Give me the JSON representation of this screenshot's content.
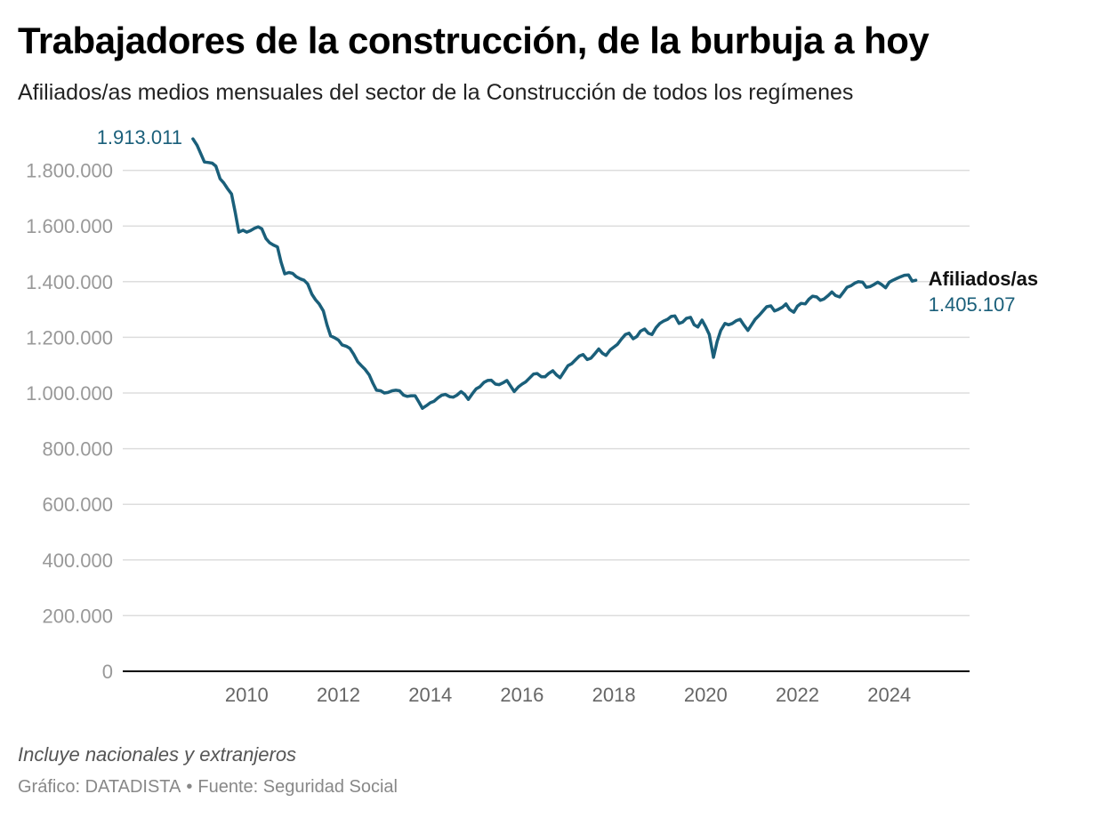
{
  "header": {
    "title": "Trabajadores de la construcción, de la burbuja a hoy",
    "subtitle": "Afiliados/as medios mensuales del sector de la Construcción de todos los regímenes"
  },
  "footer": {
    "note": "Incluye nacionales y extranjeros",
    "credit": "Gráfico: DATADISTA",
    "source": "Fuente: Seguridad Social",
    "separator": "•"
  },
  "colors": {
    "line": "#1a5f7a",
    "grid": "#dddddd",
    "axis": "#000000",
    "tick_label": "#999999"
  },
  "chart_data": {
    "type": "line",
    "title": "Trabajadores de la construcción, de la burbuja a hoy",
    "subtitle": "Afiliados/as medios mensuales del sector de la Construcción de todos los regímenes",
    "xlabel": "",
    "ylabel": "",
    "x_ticks": [
      2010,
      2012,
      2014,
      2016,
      2018,
      2020,
      2022,
      2024
    ],
    "x_tick_labels": [
      "2010",
      "2012",
      "2014",
      "2016",
      "2018",
      "2020",
      "2022",
      "2024"
    ],
    "xlim": [
      2007.3,
      2025.75
    ],
    "ylim": [
      0,
      2000000
    ],
    "y_ticks": [
      0,
      200000,
      400000,
      600000,
      800000,
      1000000,
      1200000,
      1400000,
      1600000,
      1800000
    ],
    "y_tick_labels": [
      "0",
      "200.000",
      "400.000",
      "600.000",
      "800.000",
      "1.000.000",
      "1.200.000",
      "1.400.000",
      "1.600.000",
      "1.800.000"
    ],
    "grid": true,
    "series": [
      {
        "name": "Afiliados/as",
        "end_value_label": "1.405.107",
        "start_value_label": "1.913.011",
        "points": [
          [
            2008.83,
            1913011
          ],
          [
            2008.92,
            1890000
          ],
          [
            2009.0,
            1860000
          ],
          [
            2009.08,
            1830000
          ],
          [
            2009.17,
            1828000
          ],
          [
            2009.25,
            1826000
          ],
          [
            2009.33,
            1815000
          ],
          [
            2009.42,
            1770000
          ],
          [
            2009.5,
            1755000
          ],
          [
            2009.58,
            1735000
          ],
          [
            2009.67,
            1715000
          ],
          [
            2009.75,
            1650000
          ],
          [
            2009.83,
            1578000
          ],
          [
            2009.92,
            1585000
          ],
          [
            2010.0,
            1578000
          ],
          [
            2010.08,
            1583000
          ],
          [
            2010.17,
            1592000
          ],
          [
            2010.25,
            1597000
          ],
          [
            2010.33,
            1590000
          ],
          [
            2010.42,
            1555000
          ],
          [
            2010.5,
            1540000
          ],
          [
            2010.58,
            1532000
          ],
          [
            2010.67,
            1525000
          ],
          [
            2010.75,
            1470000
          ],
          [
            2010.83,
            1428000
          ],
          [
            2010.92,
            1433000
          ],
          [
            2011.0,
            1430000
          ],
          [
            2011.08,
            1418000
          ],
          [
            2011.17,
            1410000
          ],
          [
            2011.25,
            1405000
          ],
          [
            2011.33,
            1392000
          ],
          [
            2011.42,
            1355000
          ],
          [
            2011.5,
            1335000
          ],
          [
            2011.58,
            1320000
          ],
          [
            2011.67,
            1295000
          ],
          [
            2011.75,
            1245000
          ],
          [
            2011.83,
            1205000
          ],
          [
            2011.92,
            1198000
          ],
          [
            2012.0,
            1190000
          ],
          [
            2012.08,
            1173000
          ],
          [
            2012.17,
            1168000
          ],
          [
            2012.25,
            1160000
          ],
          [
            2012.33,
            1140000
          ],
          [
            2012.42,
            1112000
          ],
          [
            2012.5,
            1098000
          ],
          [
            2012.58,
            1085000
          ],
          [
            2012.67,
            1065000
          ],
          [
            2012.75,
            1035000
          ],
          [
            2012.83,
            1010000
          ],
          [
            2012.92,
            1008000
          ],
          [
            2013.0,
            1000000
          ],
          [
            2013.08,
            1002000
          ],
          [
            2013.17,
            1008000
          ],
          [
            2013.25,
            1010000
          ],
          [
            2013.33,
            1008000
          ],
          [
            2013.42,
            992000
          ],
          [
            2013.5,
            988000
          ],
          [
            2013.58,
            990000
          ],
          [
            2013.67,
            990000
          ],
          [
            2013.75,
            968000
          ],
          [
            2013.83,
            945000
          ],
          [
            2013.92,
            955000
          ],
          [
            2014.0,
            965000
          ],
          [
            2014.08,
            970000
          ],
          [
            2014.17,
            983000
          ],
          [
            2014.25,
            992000
          ],
          [
            2014.33,
            995000
          ],
          [
            2014.42,
            987000
          ],
          [
            2014.5,
            985000
          ],
          [
            2014.58,
            992000
          ],
          [
            2014.67,
            1005000
          ],
          [
            2014.75,
            995000
          ],
          [
            2014.83,
            977000
          ],
          [
            2014.92,
            998000
          ],
          [
            2015.0,
            1015000
          ],
          [
            2015.08,
            1022000
          ],
          [
            2015.17,
            1038000
          ],
          [
            2015.25,
            1045000
          ],
          [
            2015.33,
            1046000
          ],
          [
            2015.42,
            1032000
          ],
          [
            2015.5,
            1030000
          ],
          [
            2015.58,
            1036000
          ],
          [
            2015.67,
            1045000
          ],
          [
            2015.75,
            1025000
          ],
          [
            2015.83,
            1005000
          ],
          [
            2015.92,
            1022000
          ],
          [
            2016.0,
            1032000
          ],
          [
            2016.08,
            1040000
          ],
          [
            2016.17,
            1055000
          ],
          [
            2016.25,
            1068000
          ],
          [
            2016.33,
            1070000
          ],
          [
            2016.42,
            1058000
          ],
          [
            2016.5,
            1058000
          ],
          [
            2016.58,
            1070000
          ],
          [
            2016.67,
            1080000
          ],
          [
            2016.75,
            1065000
          ],
          [
            2016.83,
            1055000
          ],
          [
            2016.92,
            1078000
          ],
          [
            2017.0,
            1098000
          ],
          [
            2017.08,
            1105000
          ],
          [
            2017.17,
            1120000
          ],
          [
            2017.25,
            1133000
          ],
          [
            2017.33,
            1138000
          ],
          [
            2017.42,
            1120000
          ],
          [
            2017.5,
            1125000
          ],
          [
            2017.58,
            1140000
          ],
          [
            2017.67,
            1158000
          ],
          [
            2017.75,
            1143000
          ],
          [
            2017.83,
            1135000
          ],
          [
            2017.92,
            1155000
          ],
          [
            2018.0,
            1165000
          ],
          [
            2018.08,
            1175000
          ],
          [
            2018.17,
            1195000
          ],
          [
            2018.25,
            1210000
          ],
          [
            2018.33,
            1215000
          ],
          [
            2018.42,
            1195000
          ],
          [
            2018.5,
            1203000
          ],
          [
            2018.58,
            1222000
          ],
          [
            2018.67,
            1230000
          ],
          [
            2018.75,
            1215000
          ],
          [
            2018.83,
            1210000
          ],
          [
            2018.92,
            1235000
          ],
          [
            2019.0,
            1250000
          ],
          [
            2019.08,
            1258000
          ],
          [
            2019.17,
            1265000
          ],
          [
            2019.25,
            1275000
          ],
          [
            2019.33,
            1277000
          ],
          [
            2019.42,
            1250000
          ],
          [
            2019.5,
            1255000
          ],
          [
            2019.58,
            1268000
          ],
          [
            2019.67,
            1272000
          ],
          [
            2019.75,
            1245000
          ],
          [
            2019.83,
            1237000
          ],
          [
            2019.92,
            1262000
          ],
          [
            2020.0,
            1238000
          ],
          [
            2020.08,
            1210000
          ],
          [
            2020.17,
            1128000
          ],
          [
            2020.25,
            1185000
          ],
          [
            2020.33,
            1225000
          ],
          [
            2020.42,
            1250000
          ],
          [
            2020.5,
            1245000
          ],
          [
            2020.58,
            1250000
          ],
          [
            2020.67,
            1260000
          ],
          [
            2020.75,
            1265000
          ],
          [
            2020.83,
            1245000
          ],
          [
            2020.92,
            1225000
          ],
          [
            2021.0,
            1245000
          ],
          [
            2021.08,
            1265000
          ],
          [
            2021.17,
            1280000
          ],
          [
            2021.25,
            1295000
          ],
          [
            2021.33,
            1310000
          ],
          [
            2021.42,
            1313000
          ],
          [
            2021.5,
            1295000
          ],
          [
            2021.58,
            1300000
          ],
          [
            2021.67,
            1308000
          ],
          [
            2021.75,
            1320000
          ],
          [
            2021.83,
            1300000
          ],
          [
            2021.92,
            1290000
          ],
          [
            2022.0,
            1312000
          ],
          [
            2022.08,
            1322000
          ],
          [
            2022.17,
            1320000
          ],
          [
            2022.25,
            1337000
          ],
          [
            2022.33,
            1348000
          ],
          [
            2022.42,
            1345000
          ],
          [
            2022.5,
            1333000
          ],
          [
            2022.58,
            1338000
          ],
          [
            2022.67,
            1350000
          ],
          [
            2022.75,
            1363000
          ],
          [
            2022.83,
            1350000
          ],
          [
            2022.92,
            1345000
          ],
          [
            2023.0,
            1362000
          ],
          [
            2023.08,
            1380000
          ],
          [
            2023.17,
            1386000
          ],
          [
            2023.25,
            1395000
          ],
          [
            2023.33,
            1400000
          ],
          [
            2023.42,
            1398000
          ],
          [
            2023.5,
            1380000
          ],
          [
            2023.58,
            1382000
          ],
          [
            2023.67,
            1390000
          ],
          [
            2023.75,
            1398000
          ],
          [
            2023.83,
            1390000
          ],
          [
            2023.92,
            1378000
          ],
          [
            2024.0,
            1398000
          ],
          [
            2024.08,
            1405000
          ],
          [
            2024.17,
            1412000
          ],
          [
            2024.25,
            1418000
          ],
          [
            2024.33,
            1423000
          ],
          [
            2024.42,
            1424000
          ],
          [
            2024.5,
            1402000
          ],
          [
            2024.58,
            1405107
          ]
        ]
      }
    ]
  }
}
